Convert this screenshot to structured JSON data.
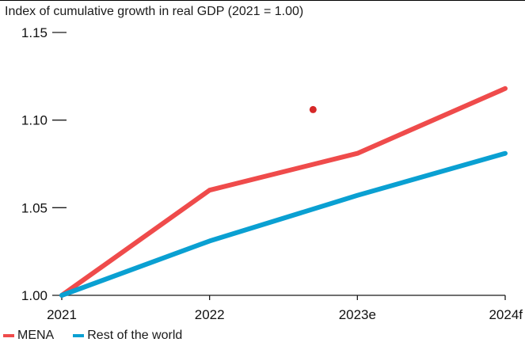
{
  "chart_data": {
    "type": "line",
    "title": "Index of cumulative growth in real GDP (2021 = 1.00)",
    "categories": [
      "2021",
      "2022",
      "2023e",
      "2024f"
    ],
    "yticks": [
      "1.00",
      "1.05",
      "1.10",
      "1.15"
    ],
    "ylim": [
      1.0,
      1.15
    ],
    "grid": false,
    "legend_position": "bottom-left",
    "series": [
      {
        "name": "MENA",
        "color": "#ef4b4b",
        "values": [
          1.0,
          1.06,
          1.081,
          1.118
        ]
      },
      {
        "name": "Rest of the world",
        "color": "#0aa0d2",
        "values": [
          1.0,
          1.031,
          1.057,
          1.081
        ]
      }
    ],
    "annotations": [
      {
        "type": "dot",
        "x": "2023e",
        "x_offset": -0.3,
        "y": 1.106,
        "color": "#d62828"
      }
    ]
  }
}
